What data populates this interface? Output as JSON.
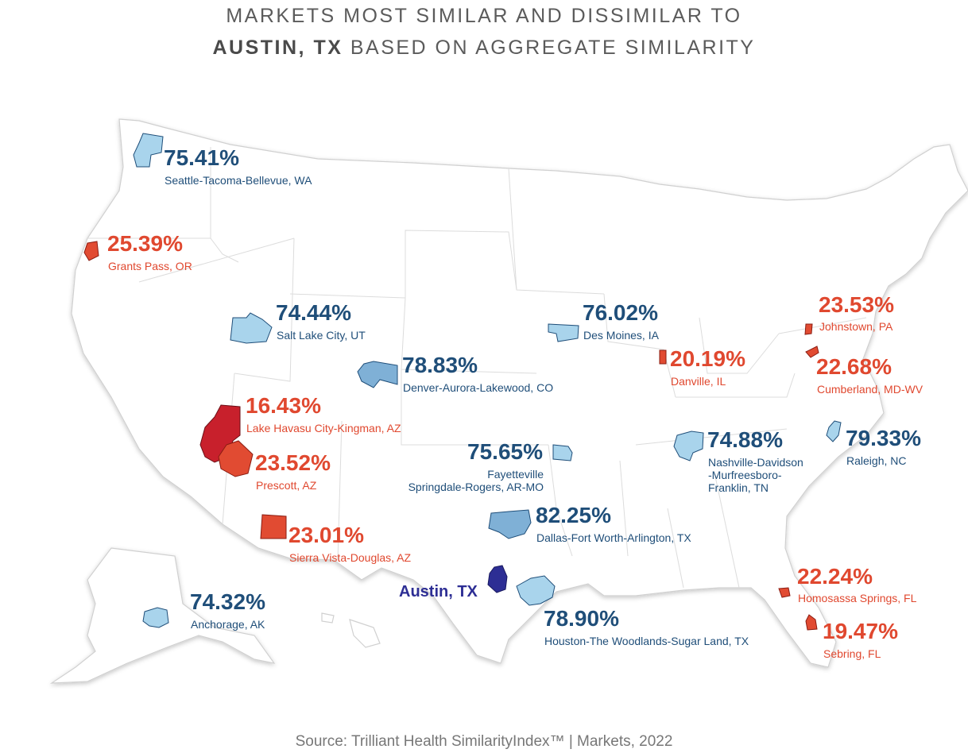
{
  "title": {
    "line1": "MARKETS MOST SIMILAR AND DISSIMILAR TO",
    "line2_bold": "AUSTIN, TX",
    "line2_rest": " BASED ON AGGREGATE SIMILARITY"
  },
  "source": "Source: Trilliant Health SimilarityIndex™ | Markets, 2022",
  "colors": {
    "similar": "#1f4e79",
    "dissimilar": "#e0482f",
    "reference": "#2d2e94",
    "similar_fill_light": "#a9d4ec",
    "similar_fill_mid": "#7fb0d6",
    "dissimilar_fill": "#e14b32",
    "dissimilar_fill_dark": "#c8202c"
  },
  "reference_market": {
    "name": "Austin, TX"
  },
  "markets": [
    {
      "id": "seattle",
      "pct": "75.41%",
      "name": "Seattle-Tacoma-Bellevue, WA",
      "group": "similar"
    },
    {
      "id": "grants-pass",
      "pct": "25.39%",
      "name": "Grants Pass, OR",
      "group": "dissimilar"
    },
    {
      "id": "salt-lake",
      "pct": "74.44%",
      "name": "Salt Lake City, UT",
      "group": "similar"
    },
    {
      "id": "des-moines",
      "pct": "76.02%",
      "name": "Des Moines, IA",
      "group": "similar"
    },
    {
      "id": "johnstown",
      "pct": "23.53%",
      "name": "Johnstown, PA",
      "group": "dissimilar"
    },
    {
      "id": "danville",
      "pct": "20.19%",
      "name": "Danville, IL",
      "group": "dissimilar"
    },
    {
      "id": "denver",
      "pct": "78.83%",
      "name": "Denver-Aurora-Lakewood, CO",
      "group": "similar"
    },
    {
      "id": "cumberland",
      "pct": "22.68%",
      "name": "Cumberland, MD-WV",
      "group": "dissimilar"
    },
    {
      "id": "lake-havasu",
      "pct": "16.43%",
      "name": "Lake Havasu City-Kingman, AZ",
      "group": "dissimilar"
    },
    {
      "id": "raleigh",
      "pct": "79.33%",
      "name": "Raleigh, NC",
      "group": "similar"
    },
    {
      "id": "nashville",
      "pct": "74.88%",
      "name_lines": [
        "Nashville-Davidson",
        "-Murfreesboro-",
        "Franklin, TN"
      ],
      "group": "similar"
    },
    {
      "id": "prescott",
      "pct": "23.52%",
      "name": "Prescott, AZ",
      "group": "dissimilar"
    },
    {
      "id": "fayetteville",
      "pct": "75.65%",
      "name_lines": [
        "Fayetteville",
        "Springdale-Rogers, AR-MO"
      ],
      "group": "similar"
    },
    {
      "id": "dallas",
      "pct": "82.25%",
      "name": "Dallas-Fort Worth-Arlington, TX",
      "group": "similar"
    },
    {
      "id": "sierra-vista",
      "pct": "23.01%",
      "name": "Sierra Vista-Douglas, AZ",
      "group": "dissimilar"
    },
    {
      "id": "homosassa",
      "pct": "22.24%",
      "name": "Homosassa Springs, FL",
      "group": "dissimilar"
    },
    {
      "id": "anchorage",
      "pct": "74.32%",
      "name": "Anchorage, AK",
      "group": "similar"
    },
    {
      "id": "houston",
      "pct": "78.90%",
      "name": "Houston-The Woodlands-Sugar Land, TX",
      "group": "similar"
    },
    {
      "id": "sebring",
      "pct": "19.47%",
      "name": "Sebring, FL",
      "group": "dissimilar"
    }
  ]
}
